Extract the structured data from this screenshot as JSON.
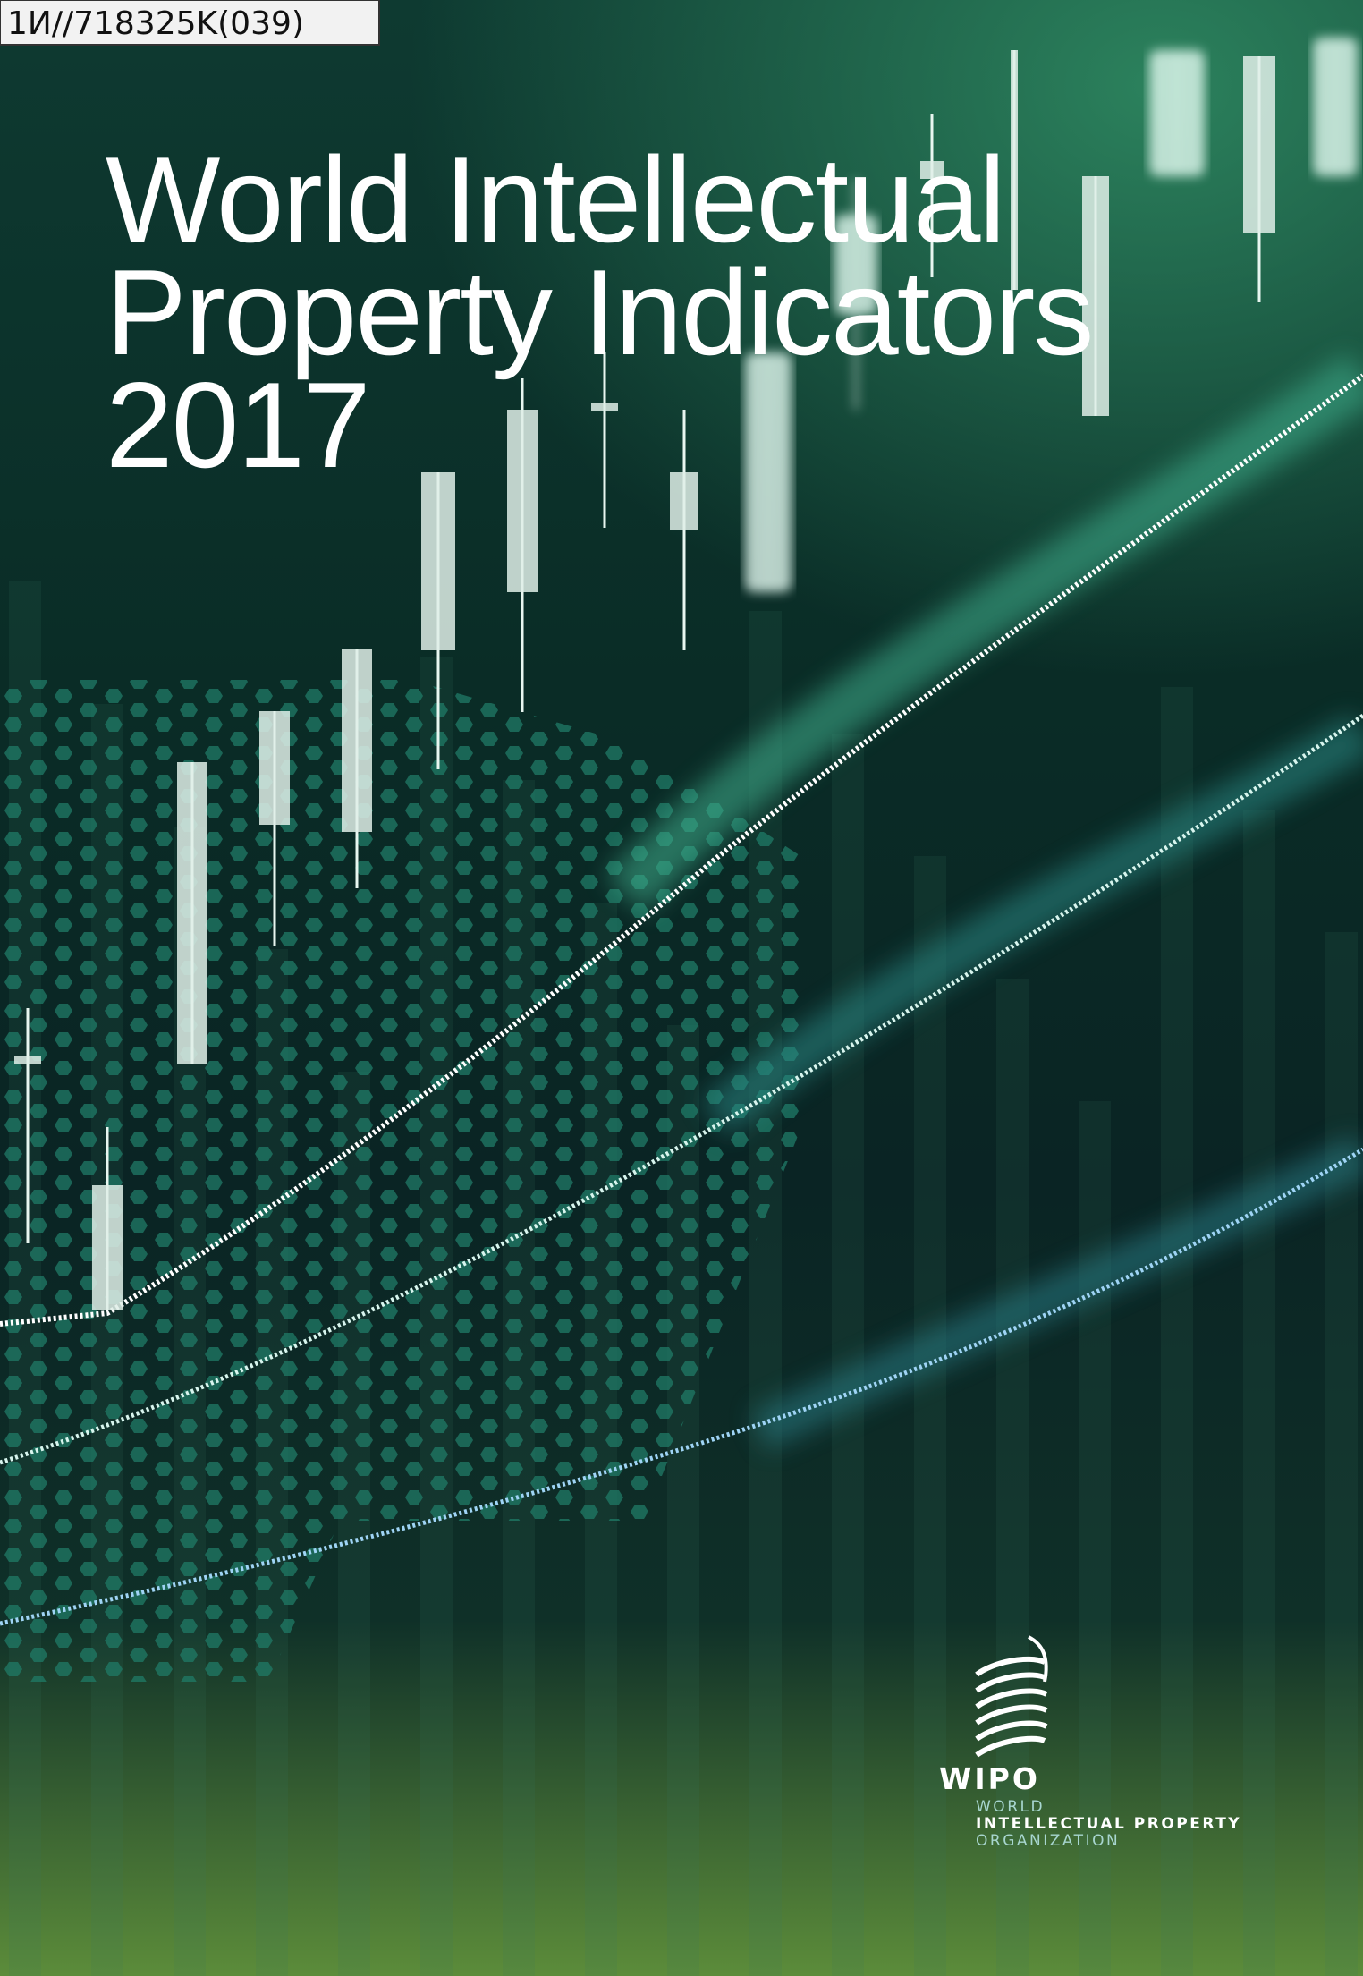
{
  "stamp": "1И//718325K(039)",
  "title": {
    "lines": [
      "World Intellectual",
      "Property Indicators",
      "2017"
    ]
  },
  "logo": {
    "acronym": "WIPO",
    "name": [
      "WORLD",
      "INTELLECTUAL PROPERTY",
      "ORGANIZATION"
    ]
  }
}
